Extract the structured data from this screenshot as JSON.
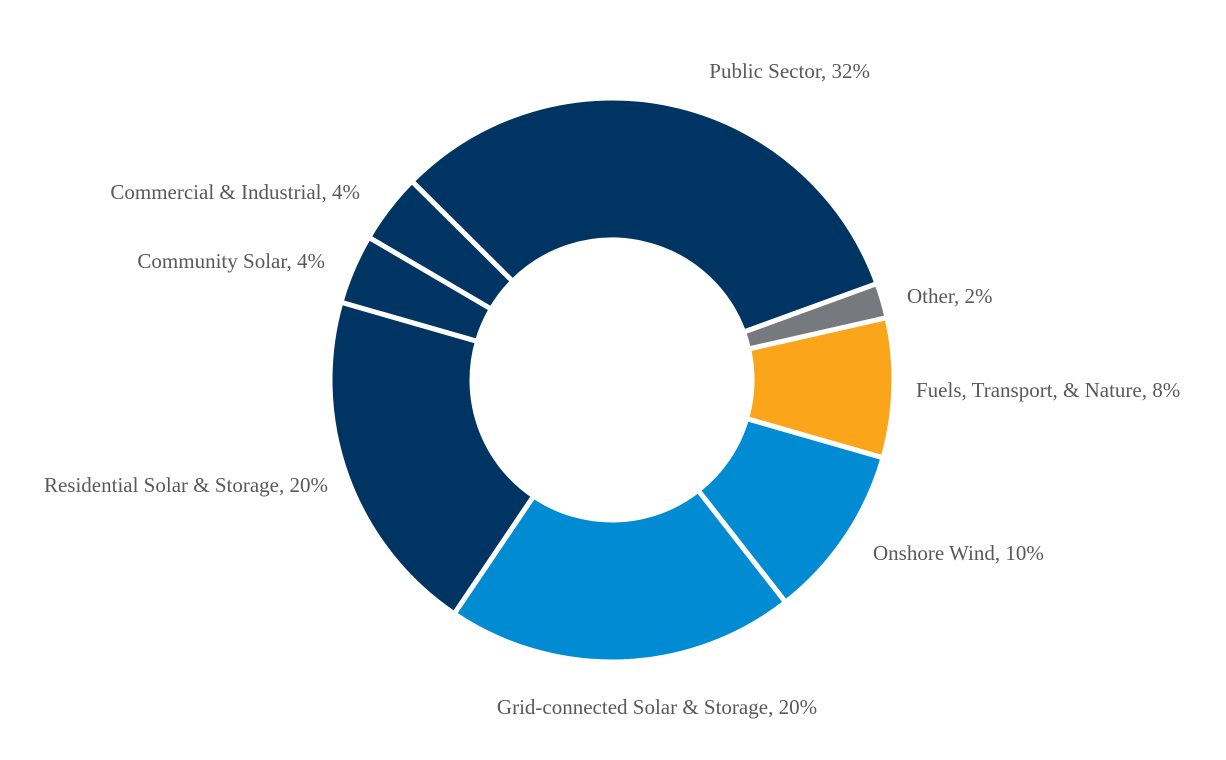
{
  "chart_data": {
    "type": "pie",
    "donut": true,
    "start_angle_deg": 20,
    "direction": "counterclockwise",
    "slices": [
      {
        "label": "Public Sector, 32%",
        "category": "Public Sector",
        "value": 32,
        "color": "#003462"
      },
      {
        "label": "Commercial & Industrial, 4%",
        "category": "Commercial & Industrial",
        "value": 4,
        "color": "#003462"
      },
      {
        "label": "Community Solar, 4%",
        "category": "Community Solar",
        "value": 4,
        "color": "#003462"
      },
      {
        "label": "Residential Solar & Storage, 20%",
        "category": "Residential Solar & Storage",
        "value": 20,
        "color": "#003462"
      },
      {
        "label": "Grid-connected Solar & Storage, 20%",
        "category": "Grid-connected Solar & Storage",
        "value": 20,
        "color": "#008BD2"
      },
      {
        "label": "Onshore Wind, 10%",
        "category": "Onshore Wind",
        "value": 10,
        "color": "#008BD2"
      },
      {
        "label": "Fuels, Transport, & Nature, 8%",
        "category": "Fuels, Transport, & Nature",
        "value": 8,
        "color": "#FBA51A"
      },
      {
        "label": "Other, 2%",
        "category": "Other",
        "value": 2,
        "color": "#76797D"
      }
    ]
  }
}
